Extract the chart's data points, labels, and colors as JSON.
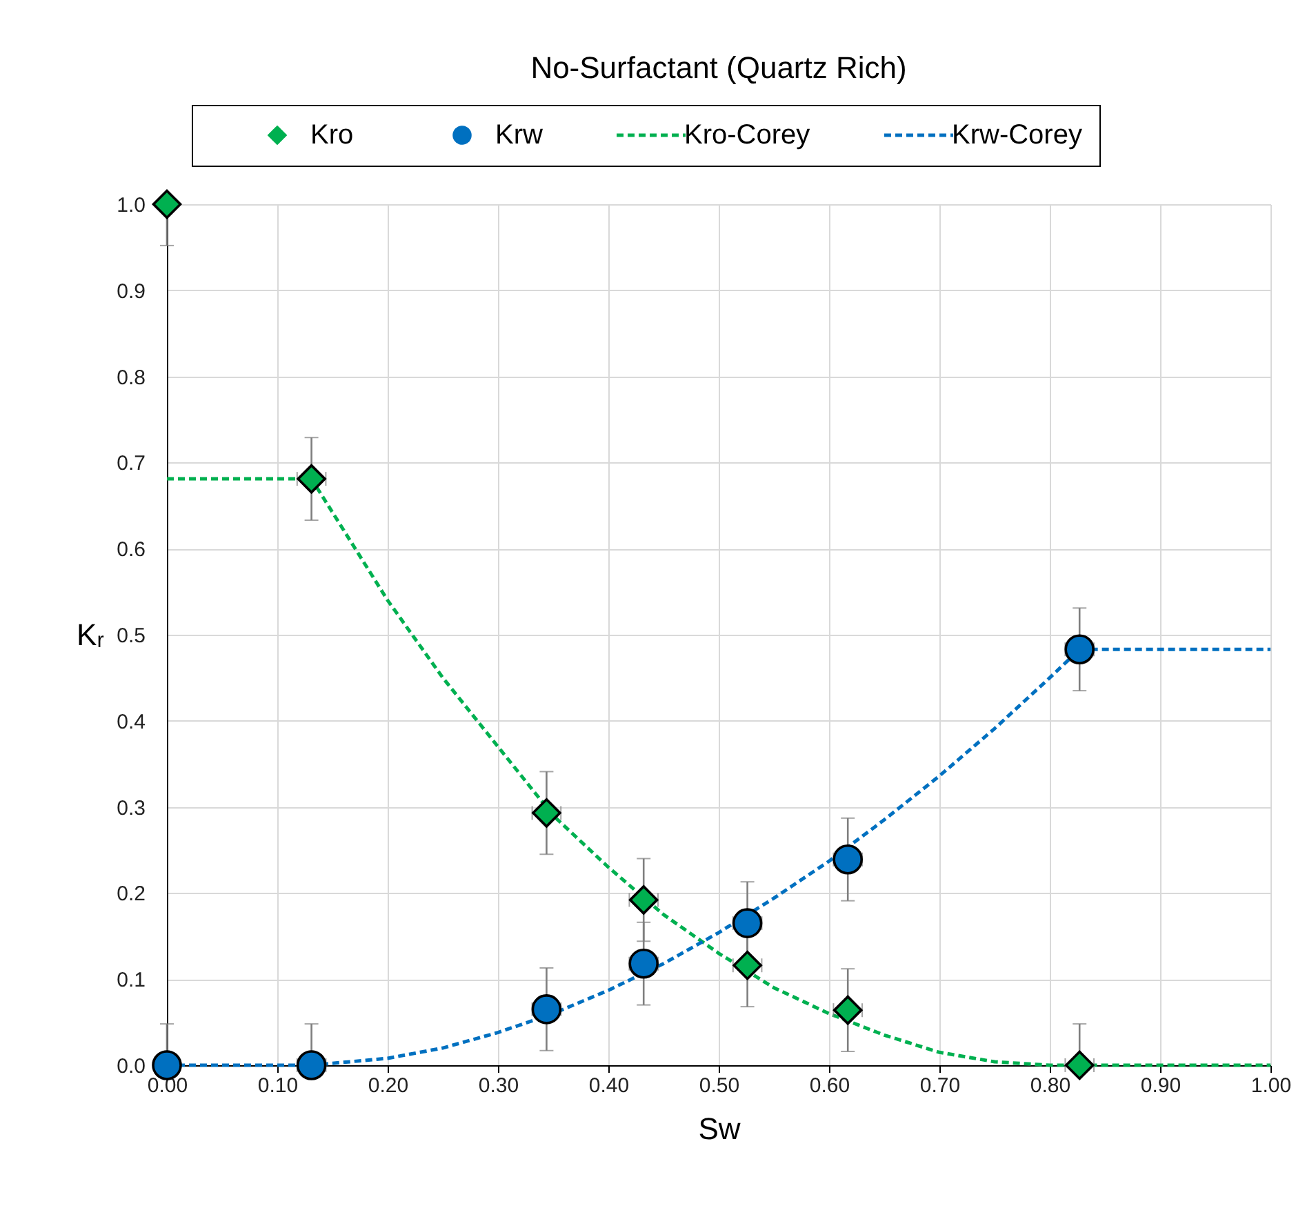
{
  "chart_data": {
    "type": "scatter",
    "title": "No-Surfactant (Quartz Rich)",
    "xlabel": "Sw",
    "ylabel": "Kᵣ",
    "xlim": [
      0,
      1
    ],
    "ylim": [
      0,
      1
    ],
    "xticks": [
      {
        "value": 0,
        "label": "0.00"
      },
      {
        "value": 0.1,
        "label": "0.10"
      },
      {
        "value": 0.2,
        "label": "0.20"
      },
      {
        "value": 0.3,
        "label": "0.30"
      },
      {
        "value": 0.4,
        "label": "0.40"
      },
      {
        "value": 0.5,
        "label": "0.50"
      },
      {
        "value": 0.6,
        "label": "0.60"
      },
      {
        "value": 0.7,
        "label": "0.70"
      },
      {
        "value": 0.8,
        "label": "0.80"
      },
      {
        "value": 0.9,
        "label": "0.90"
      },
      {
        "value": 1,
        "label": "1.00"
      }
    ],
    "yticks": [
      {
        "value": 0,
        "label": "0.0"
      },
      {
        "value": 0.1,
        "label": "0.1"
      },
      {
        "value": 0.2,
        "label": "0.2"
      },
      {
        "value": 0.3,
        "label": "0.3"
      },
      {
        "value": 0.4,
        "label": "0.4"
      },
      {
        "value": 0.5,
        "label": "0.5"
      },
      {
        "value": 0.6,
        "label": "0.6"
      },
      {
        "value": 0.7,
        "label": "0.7"
      },
      {
        "value": 0.8,
        "label": "0.8"
      },
      {
        "value": 0.9,
        "label": "0.9"
      },
      {
        "value": 1,
        "label": "1.0"
      }
    ],
    "grid": true,
    "legend": "top",
    "series": [
      {
        "name": "Kro",
        "type": "scatter",
        "marker": "diamond",
        "color": "#00b050",
        "x": [
          0,
          0.131,
          0.344,
          0.432,
          0.526,
          0.617,
          0.827
        ],
        "values": [
          1.0,
          0.681,
          0.293,
          0.192,
          0.116,
          0.064,
          0
        ],
        "errors": [
          [
            0.952,
            1.0
          ],
          0.048,
          0.048,
          0.048,
          0.048,
          0.048,
          [
            0,
            0.048
          ]
        ],
        "xerrors": [
          null,
          0.013,
          0.013,
          0.013,
          0.013,
          0.013,
          0.013
        ]
      },
      {
        "name": "Krw",
        "type": "scatter",
        "marker": "circle",
        "color": "#0070c0",
        "x": [
          0,
          0.131,
          0.344,
          0.432,
          0.526,
          0.617,
          0.827
        ],
        "values": [
          0,
          0,
          0.065,
          0.118,
          0.165,
          0.239,
          0.483
        ],
        "errors": [
          [
            0,
            0.048
          ],
          [
            0,
            0.048
          ],
          0.048,
          0.048,
          0.048,
          0.048,
          0.048
        ],
        "xerrors": [
          null,
          0.013,
          0.013,
          0.013,
          0.013,
          0.013,
          0.013
        ]
      },
      {
        "name": "Kro-Corey",
        "type": "line",
        "line_style": "dashed",
        "marker": "none",
        "color": "#00b050",
        "x": [
          0,
          0.131,
          0.2,
          0.25,
          0.3,
          0.35,
          0.4,
          0.45,
          0.5,
          0.55,
          0.6,
          0.65,
          0.7,
          0.75,
          0.8,
          1.0
        ],
        "values": [
          0.681,
          0.681,
          0.54,
          0.45,
          0.37,
          0.29,
          0.23,
          0.175,
          0.13,
          0.09,
          0.06,
          0.035,
          0.015,
          0.004,
          0,
          0
        ]
      },
      {
        "name": "Krw-Corey",
        "type": "line",
        "line_style": "dashed",
        "marker": "none",
        "color": "#0070c0",
        "x": [
          0,
          0.131,
          0.2,
          0.25,
          0.3,
          0.35,
          0.4,
          0.45,
          0.5,
          0.55,
          0.6,
          0.65,
          0.7,
          0.75,
          0.8,
          0.827,
          1.0
        ],
        "values": [
          0,
          0,
          0.008,
          0.02,
          0.038,
          0.06,
          0.087,
          0.118,
          0.154,
          0.194,
          0.237,
          0.285,
          0.336,
          0.391,
          0.45,
          0.483,
          0.483
        ]
      }
    ]
  }
}
